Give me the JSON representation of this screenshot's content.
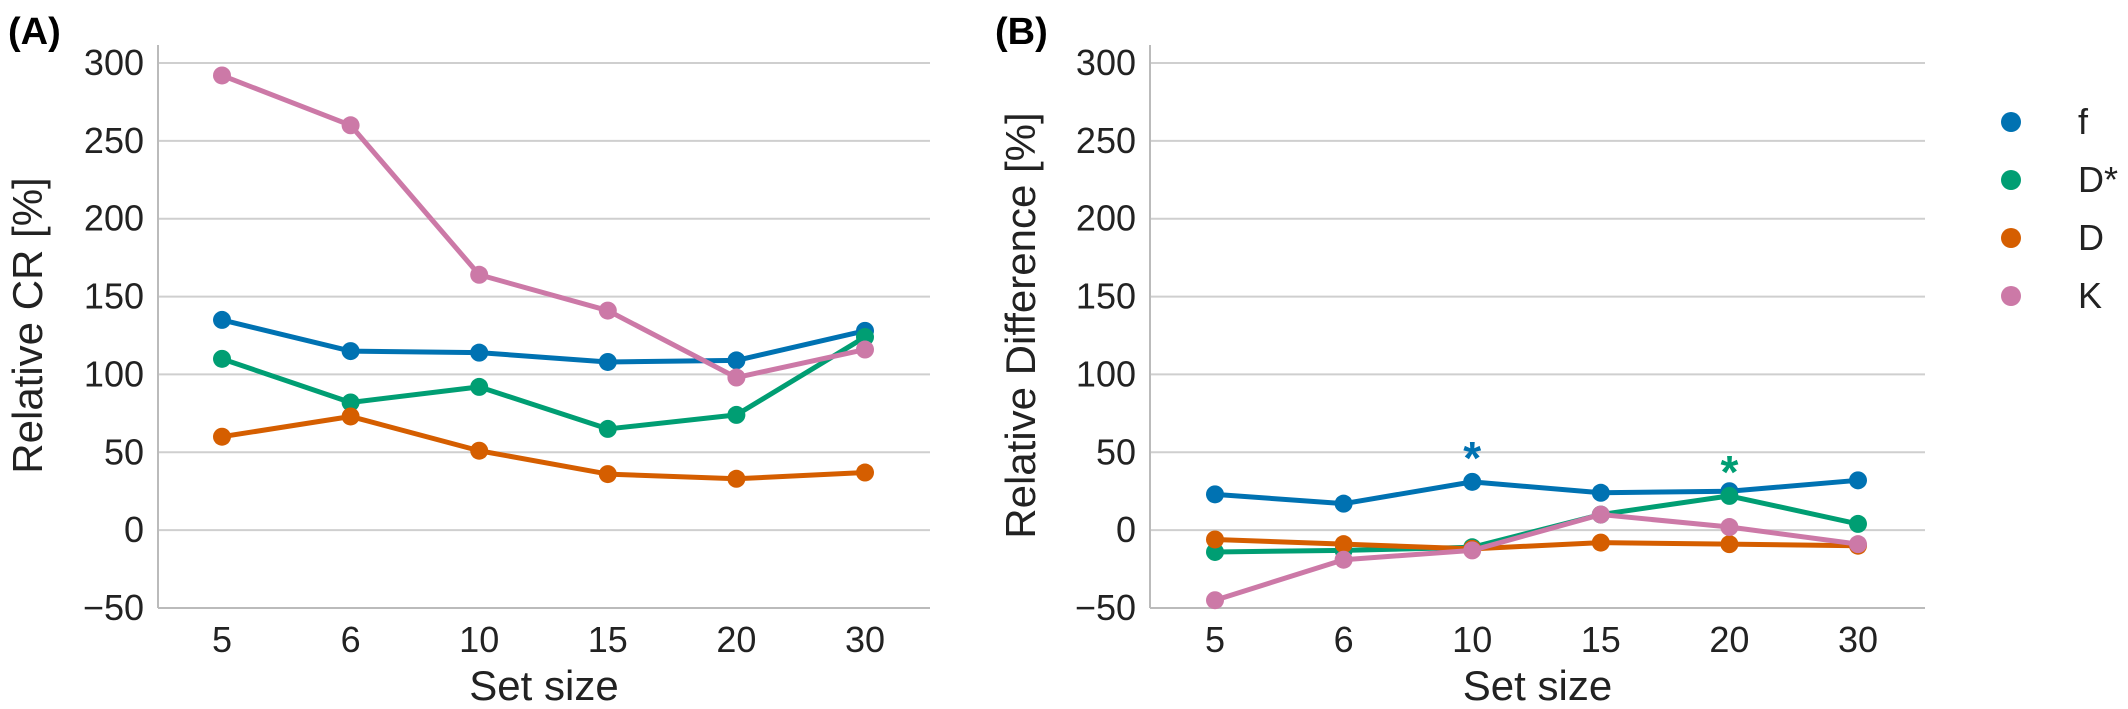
{
  "chart_data": [
    {
      "type": "line",
      "panel_label": "(A)",
      "xlabel": "Set size",
      "ylabel": "Relative CR [%]",
      "categories": [
        "5",
        "6",
        "10",
        "15",
        "20",
        "30"
      ],
      "yticks": [
        "300",
        "250",
        "200",
        "150",
        "100",
        "50",
        "0",
        "−50"
      ],
      "ylim": [
        -50,
        300
      ],
      "grid": "horizontal",
      "series": [
        {
          "name": "f",
          "color": "#0072B2",
          "values": [
            135,
            115,
            114,
            108,
            109,
            128
          ]
        },
        {
          "name": "D*",
          "color": "#009E73",
          "values": [
            110,
            82,
            92,
            65,
            74,
            124
          ]
        },
        {
          "name": "D",
          "color": "#D55E00",
          "values": [
            60,
            73,
            51,
            36,
            33,
            37
          ]
        },
        {
          "name": "K",
          "color": "#CC79A7",
          "values": [
            292,
            260,
            164,
            141,
            98,
            116
          ]
        }
      ]
    },
    {
      "type": "line",
      "panel_label": "(B)",
      "xlabel": "Set size",
      "ylabel": "Relative Difference [%]",
      "categories": [
        "5",
        "6",
        "10",
        "15",
        "20",
        "30"
      ],
      "yticks": [
        "300",
        "250",
        "200",
        "150",
        "100",
        "50",
        "0",
        "−50"
      ],
      "ylim": [
        -50,
        300
      ],
      "grid": "horizontal",
      "series": [
        {
          "name": "f",
          "color": "#0072B2",
          "values": [
            23,
            17,
            31,
            24,
            25,
            32
          ]
        },
        {
          "name": "D*",
          "color": "#009E73",
          "values": [
            -14,
            -13,
            -11,
            10,
            22,
            4
          ]
        },
        {
          "name": "D",
          "color": "#D55E00",
          "values": [
            -6,
            -9,
            -12,
            -8,
            -9,
            -10
          ]
        },
        {
          "name": "K",
          "color": "#CC79A7",
          "values": [
            -45,
            -19,
            -13,
            10,
            2,
            -9
          ]
        }
      ],
      "annotations": [
        {
          "text": "*",
          "category": "10",
          "series": "f"
        },
        {
          "text": "*",
          "category": "20",
          "series": "D*"
        }
      ]
    }
  ],
  "legend": {
    "placement": "right",
    "items": [
      {
        "label": "f",
        "color": "#0072B2"
      },
      {
        "label": "D*",
        "color": "#009E73"
      },
      {
        "label": "D",
        "color": "#D55E00"
      },
      {
        "label": "K",
        "color": "#CC79A7"
      }
    ]
  }
}
